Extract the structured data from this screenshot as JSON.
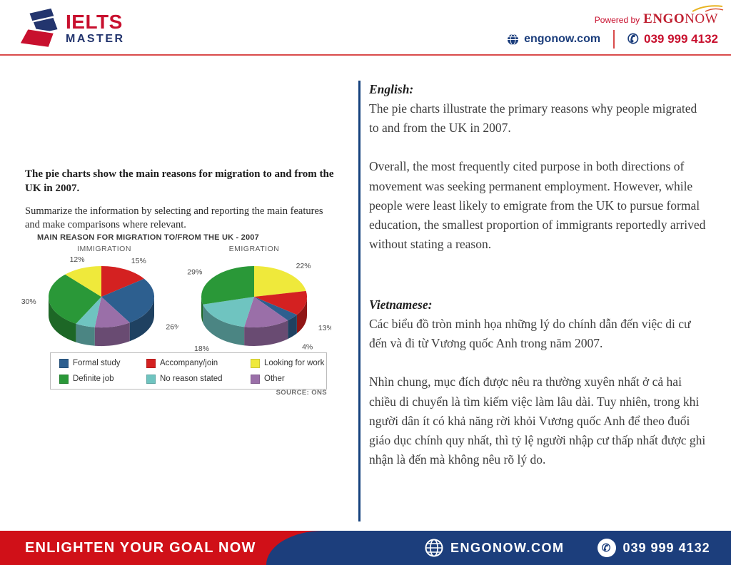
{
  "colors": {
    "brand_red": "#C8102E",
    "brand_navy": "#1C3E7C",
    "accent_gold": "#E8B421",
    "footer_red": "#D01018"
  },
  "header": {
    "logo_line1": "IELTS",
    "logo_line2": "MASTER",
    "powered_by": "Powered by",
    "brand_bold": "ENGO",
    "brand_light": "NOW",
    "website": "engonow.com",
    "phone": "039 999 4132"
  },
  "task": {
    "prompt": "The pie charts show the main reasons for migration to and from the UK in 2007.",
    "summary": "Summarize the information by selecting and reporting the main features and make comparisons where relevant."
  },
  "chart_data": {
    "type": "pie",
    "title": "MAIN REASON FOR MIGRATION TO/FROM THE UK - 2007",
    "source": "SOURCE: ONS",
    "legend": [
      {
        "label": "Formal study",
        "color": "#2D5F8F"
      },
      {
        "label": "Accompany/join",
        "color": "#D42121"
      },
      {
        "label": "Looking for work",
        "color": "#EFE93B"
      },
      {
        "label": "Definite job",
        "color": "#2A9838"
      },
      {
        "label": "No reason stated",
        "color": "#6FC4C0"
      },
      {
        "label": "Other",
        "color": "#9A6FA8"
      }
    ],
    "charts": [
      {
        "title": "IMMIGRATION",
        "slices": [
          {
            "category": "Accompany/join",
            "value": 15,
            "color": "#D42121"
          },
          {
            "category": "Formal study",
            "value": 26,
            "color": "#2D5F8F"
          },
          {
            "category": "Other",
            "value": 11,
            "color": "#9A6FA8"
          },
          {
            "category": "No reason stated",
            "value": 6,
            "color": "#6FC4C0"
          },
          {
            "category": "Definite job",
            "value": 30,
            "color": "#2A9838"
          },
          {
            "category": "Looking for work",
            "value": 12,
            "color": "#EFE93B"
          }
        ]
      },
      {
        "title": "EMIGRATION",
        "slices": [
          {
            "category": "Looking for work",
            "value": 22,
            "color": "#EFE93B"
          },
          {
            "category": "Accompany/join",
            "value": 13,
            "color": "#D42121"
          },
          {
            "category": "Formal study",
            "value": 4,
            "color": "#2D5F8F"
          },
          {
            "category": "Other",
            "value": 14,
            "color": "#9A6FA8"
          },
          {
            "category": "No reason stated",
            "value": 18,
            "color": "#6FC4C0"
          },
          {
            "category": "Definite job",
            "value": 29,
            "color": "#2A9838"
          }
        ]
      }
    ]
  },
  "translation": {
    "english_label": "English:",
    "english_p1": "The pie charts illustrate the primary reasons why people migrated to and from the UK in 2007.",
    "english_p2": "Overall, the most frequently cited purpose in both directions of movement was seeking permanent employment. However, while people were least likely to emigrate from the UK to pursue formal education, the smallest proportion of immigrants reportedly arrived without stating a reason.",
    "vietnamese_label": "Vietnamese:",
    "vietnamese_p1": "Các biểu đồ tròn minh họa những lý do chính dẫn đến việc di cư đến và đi từ Vương quốc Anh trong năm 2007.",
    "vietnamese_p2": "Nhìn chung, mục đích được nêu ra thường xuyên nhất ở cả hai chiều di chuyển là tìm kiếm việc làm lâu dài. Tuy nhiên, trong khi người dân ít có khả năng rời khỏi Vương quốc Anh để theo đuổi giáo dục chính quy nhất, thì tỷ lệ người nhập cư thấp nhất được ghi nhận là đến mà không nêu rõ lý do."
  },
  "footer": {
    "slogan": "ENLIGHTEN YOUR GOAL NOW",
    "website": "ENGONOW.COM",
    "phone": "039 999 4132"
  }
}
